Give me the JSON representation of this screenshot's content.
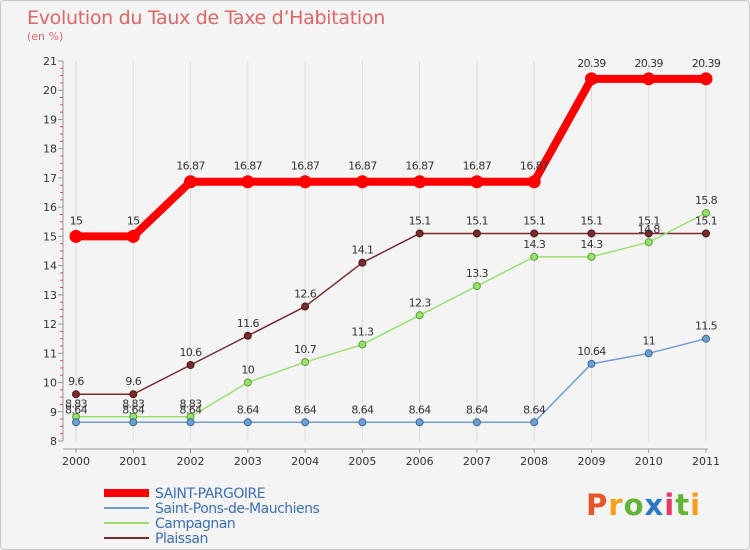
{
  "title": "Evolution du Taux de Taxe d’Habitation",
  "subtitle": "(en %)",
  "brand": "Proxiti",
  "chart_data": {
    "type": "line",
    "x": [
      "2000",
      "2001",
      "2002",
      "2003",
      "2004",
      "2005",
      "2006",
      "2007",
      "2008",
      "2009",
      "2010",
      "2011"
    ],
    "ylim": [
      8,
      21
    ],
    "yticks": [
      "8",
      "9",
      "10",
      "11",
      "12",
      "13",
      "14",
      "15",
      "16",
      "17",
      "18",
      "19",
      "20",
      "21"
    ],
    "grid": "vertical",
    "legend_position": "bottom-left",
    "series": [
      {
        "name": "SAINT-PARGOIRE",
        "color": "#ff0000",
        "values": [
          15,
          15,
          16.87,
          16.87,
          16.87,
          16.87,
          16.87,
          16.87,
          16.87,
          20.39,
          20.39,
          20.39
        ],
        "labels": [
          "15",
          "15",
          "16.87",
          "16.87",
          "16.87",
          "16.87",
          "16.87",
          "16.87",
          "16.87",
          "20.39",
          "20.39",
          "20.39"
        ]
      },
      {
        "name": "Saint-Pons-de-Mauchiens",
        "color": "#6f9fd0",
        "values": [
          8.64,
          8.64,
          8.64,
          8.64,
          8.64,
          8.64,
          8.64,
          8.64,
          8.64,
          10.64,
          11,
          11.5
        ],
        "labels": [
          "8.64",
          "8.64",
          "8.64",
          "8.64",
          "8.64",
          "8.64",
          "8.64",
          "8.64",
          "8.64",
          "10.64",
          "11",
          "11.5"
        ]
      },
      {
        "name": "Campagnan",
        "color": "#99e070",
        "values": [
          8.83,
          8.83,
          8.83,
          10,
          10.7,
          11.3,
          12.3,
          13.3,
          14.3,
          14.3,
          14.8,
          15.8
        ],
        "labels": [
          "8.83",
          "8.83",
          "8.83",
          "10",
          "10.7",
          "11.3",
          "12.3",
          "13.3",
          "14.3",
          "14.3",
          "14.8",
          "15.8"
        ]
      },
      {
        "name": "Plaissan",
        "color": "#7a2c2c",
        "values": [
          9.6,
          9.6,
          10.6,
          11.6,
          12.6,
          14.1,
          15.1,
          15.1,
          15.1,
          15.1,
          15.1,
          15.1
        ],
        "labels": [
          "9.6",
          "9.6",
          "10.6",
          "11.6",
          "12.6",
          "14.1",
          "15.1",
          "15.1",
          "15.1",
          "15.1",
          "15.1",
          "15.1"
        ]
      }
    ]
  }
}
